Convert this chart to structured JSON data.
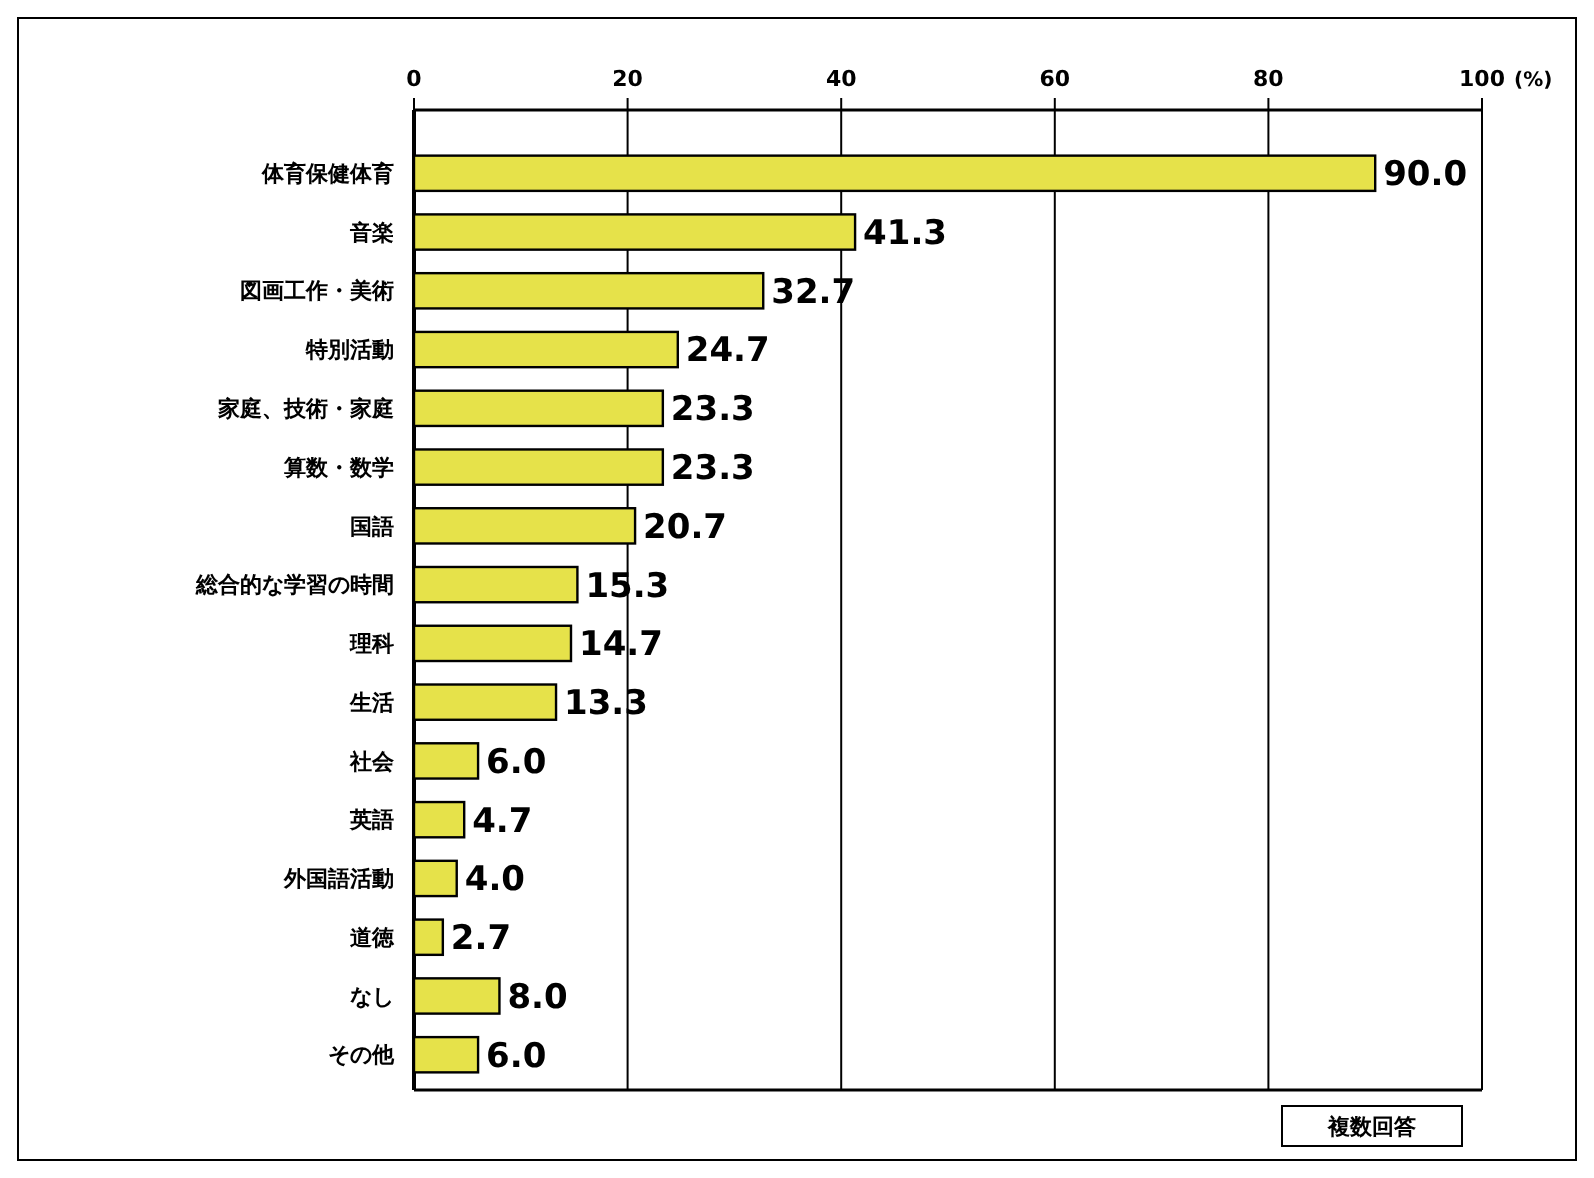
{
  "chart_data": {
    "type": "bar",
    "orientation": "horizontal",
    "xlabel": "(%)",
    "categories": [
      "体育保健体育",
      "音楽",
      "図画工作・美術",
      "特別活動",
      "家庭、技術・家庭",
      "算数・数学",
      "国語",
      "総合的な学習の時間",
      "理科",
      "生活",
      "社会",
      "英語",
      "外国語活動",
      "道徳",
      "なし",
      "その他"
    ],
    "values": [
      90.0,
      41.3,
      32.7,
      24.7,
      23.3,
      23.3,
      20.7,
      15.3,
      14.7,
      13.3,
      6.0,
      4.7,
      4.0,
      2.7,
      8.0,
      6.0
    ],
    "value_labels": [
      "90.0",
      "41.3",
      "32.7",
      "24.7",
      "23.3",
      "23.3",
      "20.7",
      "15.3",
      "14.7",
      "13.3",
      "6.0",
      "4.7",
      "4.0",
      "2.7",
      "8.0",
      "6.0"
    ],
    "color": "#e6e24a",
    "xlim": [
      0,
      100
    ],
    "xticks": [
      0,
      20,
      40,
      60,
      80,
      100
    ],
    "grid": "x",
    "annotations": [
      "複数回答"
    ]
  }
}
